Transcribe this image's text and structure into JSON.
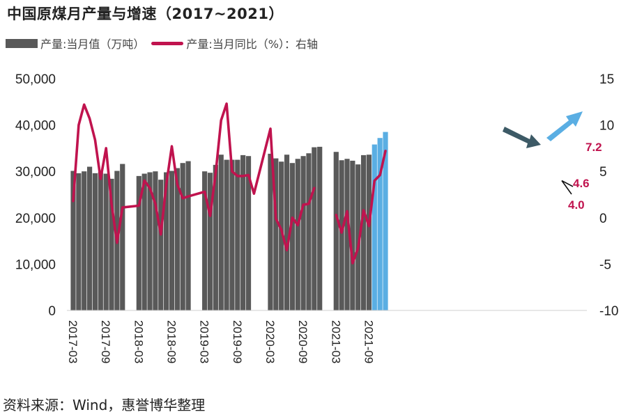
{
  "title": "中国原煤月产量与增速（2017~2021）",
  "legend": {
    "bar_label": "产量:当月值（万吨）",
    "line_label": "产量:当月同比（%）：右轴"
  },
  "source": "资料来源：Wind，惠誉博华整理",
  "colors": {
    "bar": "#595959",
    "bar_highlight": "#5aaee3",
    "line": "#c0134e",
    "annotation": "#c0134e",
    "arrow_dark": "#3d5a66",
    "arrow_light": "#5aaee3"
  },
  "chart_data": {
    "type": "bar+line",
    "x_ticks": [
      "2017-03",
      "2017-09",
      "2018-03",
      "2018-09",
      "2019-03",
      "2019-09",
      "2020-03",
      "2020-09",
      "2021-03",
      "2021-09"
    ],
    "left_axis": {
      "ylim": [
        0,
        50000
      ],
      "ticks": [
        "0",
        "10,000",
        "20,000",
        "30,000",
        "40,000",
        "50,000"
      ]
    },
    "right_axis": {
      "ylim": [
        -10,
        15
      ],
      "ticks": [
        "-10",
        "-5",
        "0",
        "5",
        "10",
        "15"
      ]
    },
    "months": [
      "2017-03",
      "2017-04",
      "2017-05",
      "2017-06",
      "2017-07",
      "2017-08",
      "2017-09",
      "2017-10",
      "2017-11",
      "2017-12",
      "2018-03",
      "2018-04",
      "2018-05",
      "2018-06",
      "2018-07",
      "2018-08",
      "2018-09",
      "2018-10",
      "2018-11",
      "2018-12",
      "2019-03",
      "2019-04",
      "2019-05",
      "2019-06",
      "2019-07",
      "2019-08",
      "2019-09",
      "2019-10",
      "2019-11",
      "2019-12",
      "2020-03",
      "2020-04",
      "2020-05",
      "2020-06",
      "2020-07",
      "2020-08",
      "2020-09",
      "2020-10",
      "2020-11",
      "2020-12",
      "2021-03",
      "2021-04",
      "2021-05",
      "2021-06",
      "2021-07",
      "2021-08",
      "2021-09",
      "2021-10",
      "2021-11",
      "2021-12"
    ],
    "series": [
      {
        "name": "产量:当月值（万吨）",
        "kind": "bar",
        "values": [
          30100,
          29600,
          30000,
          31000,
          29600,
          29800,
          29500,
          28400,
          30100,
          31600,
          29000,
          29500,
          29800,
          30000,
          28200,
          29800,
          30100,
          30700,
          31800,
          32200,
          30000,
          29700,
          31400,
          33600,
          32500,
          32500,
          32500,
          33500,
          33300,
          null,
          33800,
          32800,
          32100,
          33600,
          31800,
          32700,
          33300,
          33900,
          35200,
          35300,
          34200,
          32400,
          32700,
          32300,
          31500,
          33500,
          33600,
          35800,
          37200,
          38500
        ],
        "highlight_months": [
          "2021-10",
          "2021-11",
          "2021-12"
        ]
      },
      {
        "name": "产量:当月同比（%）：右轴",
        "kind": "line",
        "axis": "right",
        "values": [
          1.8,
          10.0,
          12.2,
          10.7,
          8.4,
          4.2,
          7.5,
          1.5,
          -2.7,
          1.1,
          1.3,
          4.0,
          3.2,
          1.5,
          -1.8,
          3.6,
          7.7,
          3.6,
          2.1,
          2.3,
          2.8,
          0.2,
          4.8,
          10.5,
          12.3,
          5.0,
          4.5,
          4.5,
          4.6,
          2.6,
          9.6,
          -0.1,
          -1.3,
          -3.5,
          0.0,
          -0.8,
          1.4,
          1.5,
          3.2,
          null,
          0.3,
          -1.6,
          0.7,
          -4.9,
          -3.3,
          0.8,
          -0.9,
          4.0,
          4.6,
          7.2
        ]
      }
    ],
    "annotations": [
      "7.2",
      "4.6",
      "4.0"
    ]
  }
}
